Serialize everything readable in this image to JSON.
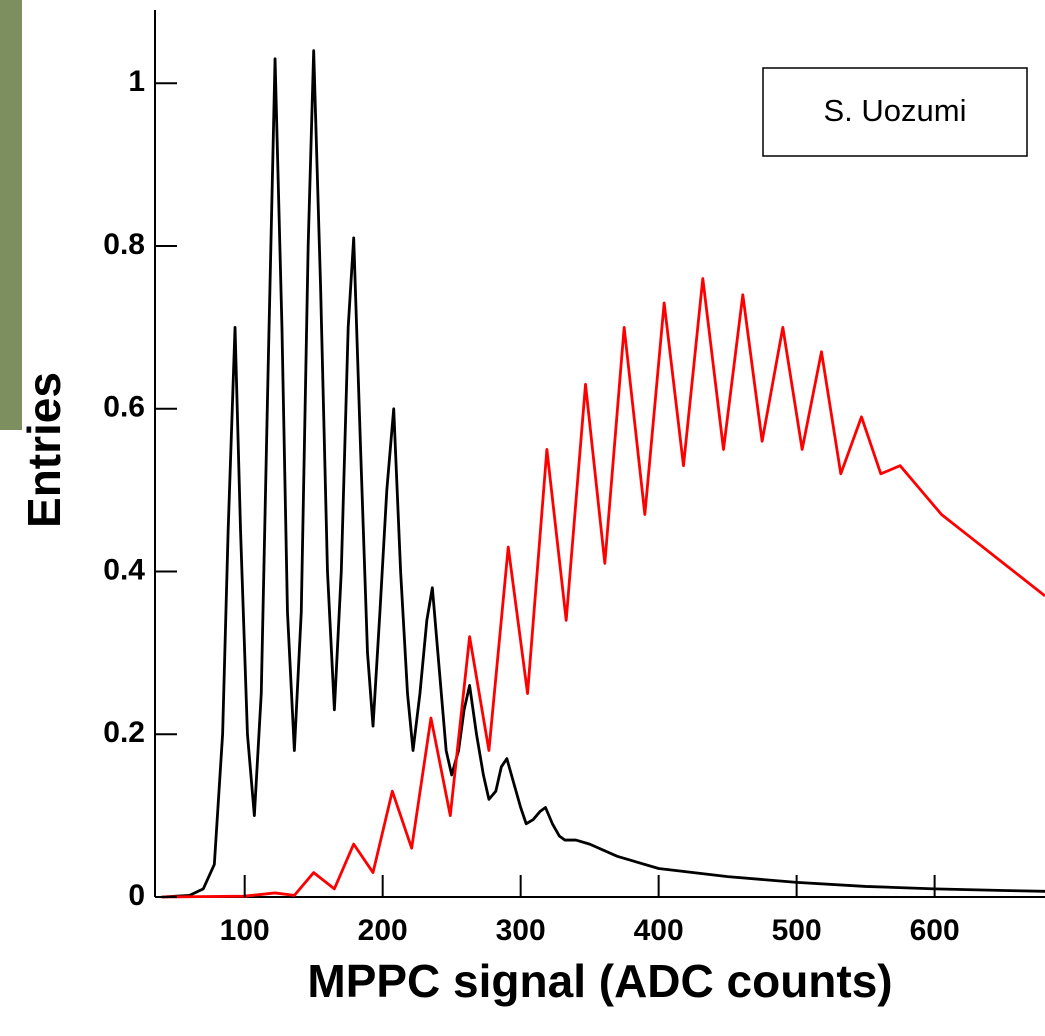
{
  "chart_data": {
    "type": "line",
    "xlabel": "MPPC signal (ADC counts)",
    "ylabel": "Entries",
    "annotation": "S. Uozumi",
    "xlim": [
      35,
      680
    ],
    "ylim": [
      0,
      1.09
    ],
    "xticks": [
      100,
      200,
      300,
      400,
      500,
      600
    ],
    "yticks": [
      0,
      0.2,
      0.4,
      0.6,
      0.8,
      1
    ],
    "series": [
      {
        "color": "#000000",
        "x": [
          40,
          60,
          70,
          78,
          84,
          88,
          93,
          97,
          102,
          107,
          112,
          117,
          122,
          127,
          131,
          136,
          141,
          146,
          150,
          155,
          160,
          165,
          170,
          175,
          179,
          184,
          189,
          193,
          198,
          203,
          208,
          213,
          218,
          222,
          227,
          232,
          236,
          241,
          246,
          250,
          255,
          259,
          263,
          268,
          273,
          277,
          282,
          286,
          290,
          295,
          300,
          304,
          309,
          314,
          318,
          323,
          328,
          332,
          340,
          350,
          370,
          400,
          450,
          500,
          550,
          600,
          650,
          680
        ],
        "values": [
          0,
          0.002,
          0.01,
          0.04,
          0.2,
          0.45,
          0.7,
          0.45,
          0.2,
          0.1,
          0.25,
          0.65,
          1.03,
          0.7,
          0.35,
          0.18,
          0.35,
          0.8,
          1.04,
          0.75,
          0.4,
          0.23,
          0.4,
          0.7,
          0.81,
          0.55,
          0.3,
          0.21,
          0.35,
          0.5,
          0.6,
          0.4,
          0.25,
          0.18,
          0.25,
          0.34,
          0.38,
          0.28,
          0.18,
          0.15,
          0.18,
          0.23,
          0.26,
          0.2,
          0.15,
          0.12,
          0.13,
          0.16,
          0.17,
          0.14,
          0.11,
          0.09,
          0.095,
          0.105,
          0.11,
          0.09,
          0.075,
          0.07,
          0.07,
          0.065,
          0.05,
          0.035,
          0.025,
          0.018,
          0.013,
          0.01,
          0.008,
          0.007
        ]
      },
      {
        "color": "#ff0000",
        "x": [
          40,
          100,
          122,
          136,
          150,
          165,
          179,
          193,
          207,
          221,
          235,
          249,
          263,
          277,
          291,
          305,
          319,
          333,
          347,
          361,
          375,
          390,
          404,
          418,
          432,
          447,
          461,
          475,
          490,
          504,
          518,
          532,
          547,
          561,
          575,
          590,
          605,
          620,
          635,
          650,
          665,
          680
        ],
        "values": [
          0,
          0.001,
          0.005,
          0.002,
          0.03,
          0.01,
          0.065,
          0.03,
          0.13,
          0.06,
          0.22,
          0.1,
          0.32,
          0.18,
          0.43,
          0.25,
          0.55,
          0.34,
          0.63,
          0.41,
          0.7,
          0.47,
          0.73,
          0.53,
          0.76,
          0.55,
          0.74,
          0.56,
          0.7,
          0.55,
          0.67,
          0.52,
          0.59,
          0.52,
          0.53,
          0.5,
          0.47,
          0.45,
          0.43,
          0.41,
          0.39,
          0.37
        ]
      }
    ]
  }
}
